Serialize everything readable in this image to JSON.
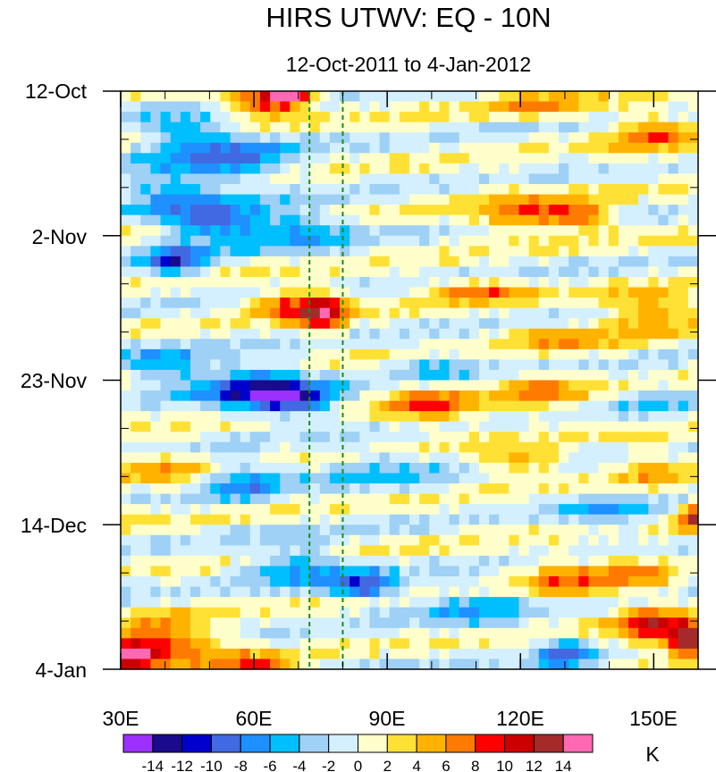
{
  "chart_data": {
    "type": "heatmap",
    "title": "HIRS UTWV: EQ - 10N",
    "subtitle": "12-Oct-2011 to 4-Jan-2012",
    "xlabel": "",
    "ylabel": "",
    "x_ticks": [
      "30E",
      "60E",
      "90E",
      "120E",
      "150E"
    ],
    "x_tick_values": [
      30,
      60,
      90,
      120,
      150
    ],
    "xlim": [
      30,
      160
    ],
    "y_ticks": [
      "12-Oct",
      "2-Nov",
      "23-Nov",
      "14-Dec",
      "4-Jan"
    ],
    "y_tick_days": [
      0,
      21,
      42,
      63,
      84
    ],
    "ylim_days": [
      0,
      84
    ],
    "reference_lines_lon": [
      72.5,
      80
    ],
    "reference_line_color": "#1a8a1a",
    "colorbar": {
      "unit": "K",
      "labels": [
        "-14",
        "-12",
        "-10",
        "-8",
        "-6",
        "-4",
        "-2",
        "0",
        "2",
        "4",
        "6",
        "8",
        "10",
        "12",
        "14"
      ],
      "colors": [
        "#9b30ff",
        "#1a0a8c",
        "#0000cd",
        "#4169e1",
        "#1e90ff",
        "#00bfff",
        "#9fd0f5",
        "#d4f0ff",
        "#ffffcc",
        "#ffe135",
        "#ffb300",
        "#ff7a00",
        "#ff0000",
        "#cc0000",
        "#a52a2a",
        "#ff69b4"
      ]
    },
    "anomaly_features": [
      {
        "lon": 68,
        "day": 0.5,
        "value": 14,
        "sx": 5,
        "sy": 1.5
      },
      {
        "lon": 62,
        "day": 1.5,
        "value": 9,
        "sx": 9,
        "sy": 2.5
      },
      {
        "lon": 45,
        "day": 6,
        "value": -6,
        "sx": 12,
        "sy": 3
      },
      {
        "lon": 55,
        "day": 10,
        "value": -7,
        "sx": 14,
        "sy": 3
      },
      {
        "lon": 40,
        "day": 14,
        "value": -6,
        "sx": 10,
        "sy": 3
      },
      {
        "lon": 50,
        "day": 19,
        "value": -9,
        "sx": 12,
        "sy": 3
      },
      {
        "lon": 42,
        "day": 25,
        "value": -10,
        "sx": 7,
        "sy": 2
      },
      {
        "lon": 70,
        "day": 20,
        "value": -6,
        "sx": 12,
        "sy": 3
      },
      {
        "lon": 132,
        "day": 18,
        "value": 10,
        "sx": 9,
        "sy": 2
      },
      {
        "lon": 118,
        "day": 18,
        "value": 6,
        "sx": 9,
        "sy": 3
      },
      {
        "lon": 150,
        "day": 6,
        "value": 6,
        "sx": 10,
        "sy": 3
      },
      {
        "lon": 125,
        "day": 2,
        "value": 5,
        "sx": 12,
        "sy": 2
      },
      {
        "lon": 75,
        "day": 32,
        "value": 11,
        "sx": 6,
        "sy": 3
      },
      {
        "lon": 65,
        "day": 31,
        "value": 7,
        "sx": 8,
        "sy": 2
      },
      {
        "lon": 110,
        "day": 29,
        "value": 7,
        "sx": 12,
        "sy": 1.5
      },
      {
        "lon": 150,
        "day": 32,
        "value": 7,
        "sx": 10,
        "sy": 3
      },
      {
        "lon": 130,
        "day": 36,
        "value": 5,
        "sx": 12,
        "sy": 2
      },
      {
        "lon": 60,
        "day": 43,
        "value": -11,
        "sx": 12,
        "sy": 3
      },
      {
        "lon": 70,
        "day": 45,
        "value": -10,
        "sx": 9,
        "sy": 2
      },
      {
        "lon": 40,
        "day": 40,
        "value": -6,
        "sx": 9,
        "sy": 3
      },
      {
        "lon": 100,
        "day": 46,
        "value": 7,
        "sx": 10,
        "sy": 3
      },
      {
        "lon": 125,
        "day": 44,
        "value": 5,
        "sx": 10,
        "sy": 3
      },
      {
        "lon": 100,
        "day": 40,
        "value": -5,
        "sx": 10,
        "sy": 2
      },
      {
        "lon": 150,
        "day": 45,
        "value": -3,
        "sx": 8,
        "sy": 3
      },
      {
        "lon": 40,
        "day": 55,
        "value": 5,
        "sx": 8,
        "sy": 3
      },
      {
        "lon": 58,
        "day": 57,
        "value": -6,
        "sx": 10,
        "sy": 3
      },
      {
        "lon": 90,
        "day": 55,
        "value": -4,
        "sx": 14,
        "sy": 3
      },
      {
        "lon": 120,
        "day": 54,
        "value": 6,
        "sx": 10,
        "sy": 2
      },
      {
        "lon": 150,
        "day": 55,
        "value": 4,
        "sx": 10,
        "sy": 3
      },
      {
        "lon": 140,
        "day": 61,
        "value": -4,
        "sx": 12,
        "sy": 3
      },
      {
        "lon": 160,
        "day": 62,
        "value": 11,
        "sx": 4,
        "sy": 2
      },
      {
        "lon": 85,
        "day": 72,
        "value": -10,
        "sx": 7,
        "sy": 2
      },
      {
        "lon": 70,
        "day": 69,
        "value": -6,
        "sx": 12,
        "sy": 3
      },
      {
        "lon": 110,
        "day": 75,
        "value": -5,
        "sx": 12,
        "sy": 3
      },
      {
        "lon": 130,
        "day": 71,
        "value": 6,
        "sx": 10,
        "sy": 3
      },
      {
        "lon": 40,
        "day": 80,
        "value": 10,
        "sx": 12,
        "sy": 3
      },
      {
        "lon": 32,
        "day": 82,
        "value": 12,
        "sx": 5,
        "sy": 2
      },
      {
        "lon": 60,
        "day": 84,
        "value": 9,
        "sx": 9,
        "sy": 2
      },
      {
        "lon": 150,
        "day": 78,
        "value": 10,
        "sx": 9,
        "sy": 3
      },
      {
        "lon": 158,
        "day": 80,
        "value": 14,
        "sx": 4,
        "sy": 2
      },
      {
        "lon": 130,
        "day": 82,
        "value": -8,
        "sx": 6,
        "sy": 2
      },
      {
        "lon": 145,
        "day": 70,
        "value": 5,
        "sx": 8,
        "sy": 3
      }
    ]
  }
}
